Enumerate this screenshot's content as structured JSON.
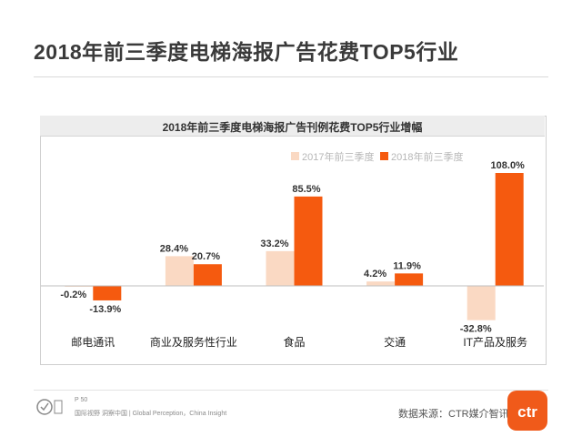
{
  "page_title": "2018年前三季度电梯海报广告花费TOP5行业",
  "footer": {
    "page_label": "P 50",
    "slogan": "国际视野 洞察中国 | Global Perception，China Insight",
    "source": "数据来源：CTR媒介智讯",
    "brand_logo_text": "ctr"
  },
  "colors": {
    "series_2017": "#fad9c3",
    "series_2018": "#f55a0f",
    "axis": "#bfbfbf",
    "brand": "#f05a1a"
  },
  "chart_data": {
    "type": "bar",
    "title": "2018年前三季度电梯海报广告刊例花费TOP5行业增幅",
    "categories": [
      "邮电通讯",
      "商业及服务性行业",
      "食品",
      "交通",
      "IT产品及服务"
    ],
    "series": [
      {
        "name": "2017年前三季度",
        "values": [
          -0.2,
          28.4,
          33.2,
          4.2,
          -32.8
        ],
        "labels": [
          "-0.2%",
          "28.4%",
          "33.2%",
          "4.2%",
          "-32.8%"
        ]
      },
      {
        "name": "2018年前三季度",
        "values": [
          -13.9,
          20.7,
          85.5,
          11.9,
          108.0
        ],
        "labels": [
          "-13.9%",
          "20.7%",
          "85.5%",
          "11.9%",
          "108.0%"
        ]
      }
    ],
    "ylim": [
      -40,
      115
    ],
    "legend_position": "top-center",
    "grid": false
  }
}
